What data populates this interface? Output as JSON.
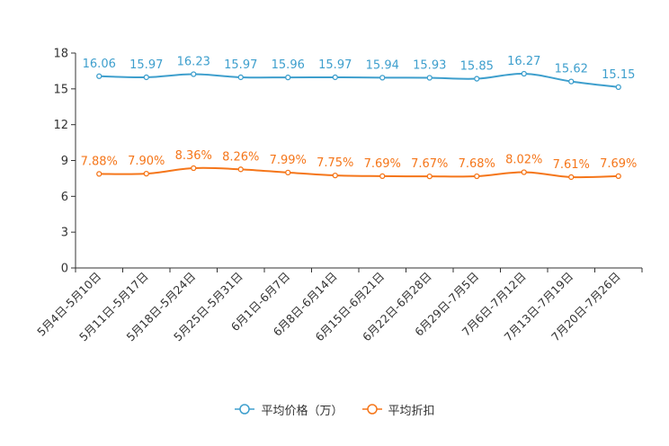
{
  "chart_data": {
    "type": "line",
    "categories": [
      "5月4日-5月10日",
      "5月11日-5月17日",
      "5月18日-5月24日",
      "5月25日-5月31日",
      "6月1日-6月7日",
      "6月8日-6月14日",
      "6月15日-6月21日",
      "6月22日-6月28日",
      "6月29日-7月5日",
      "7月6日-7月12日",
      "7月13日-7月19日",
      "7月20日-7月26日"
    ],
    "series": [
      {
        "name": "平均价格（万）",
        "color": "#3e9fcd",
        "values": [
          16.06,
          15.97,
          16.23,
          15.97,
          15.96,
          15.97,
          15.94,
          15.93,
          15.85,
          16.27,
          15.62,
          15.15
        ],
        "labels": [
          "16.06",
          "15.97",
          "16.23",
          "15.97",
          "15.96",
          "15.97",
          "15.94",
          "15.93",
          "15.85",
          "16.27",
          "15.62",
          "15.15"
        ]
      },
      {
        "name": "平均折扣",
        "color": "#f5761a",
        "values": [
          7.88,
          7.9,
          8.36,
          8.26,
          7.99,
          7.75,
          7.69,
          7.67,
          7.68,
          8.02,
          7.61,
          7.69
        ],
        "labels": [
          "7.88%",
          "7.90%",
          "8.36%",
          "8.26%",
          "7.99%",
          "7.75%",
          "7.69%",
          "7.67%",
          "7.68%",
          "8.02%",
          "7.61%",
          "7.69%"
        ]
      }
    ],
    "yticks": [
      "0",
      "3",
      "6",
      "9",
      "12",
      "15",
      "18"
    ],
    "ylim": [
      0,
      18
    ],
    "title": "",
    "xlabel": "",
    "ylabel": "",
    "legend_position": "bottom-center"
  }
}
